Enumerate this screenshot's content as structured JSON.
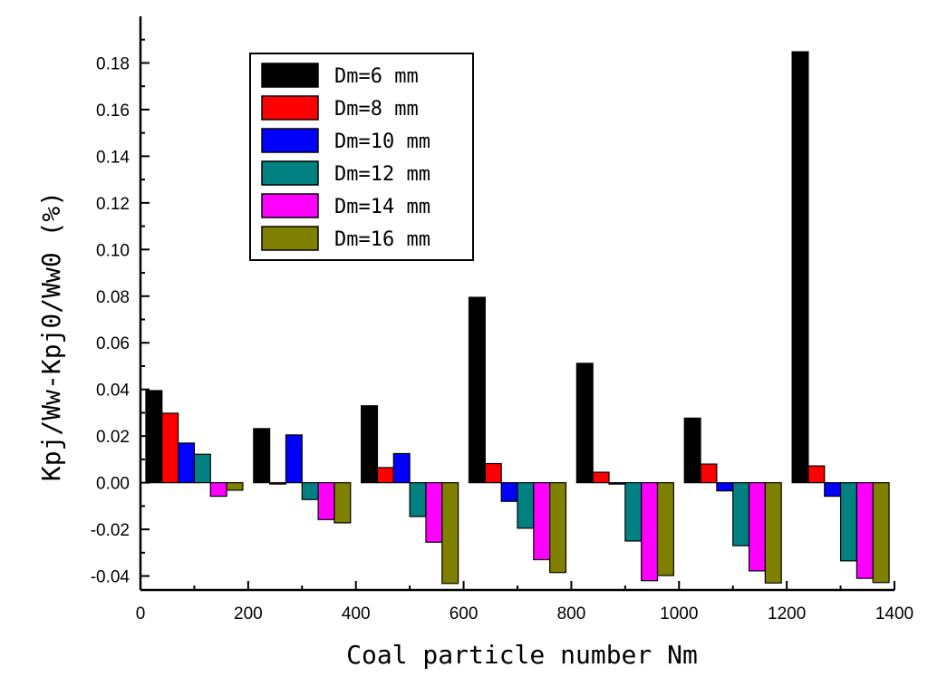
{
  "chart_data": {
    "type": "bar",
    "title": "",
    "xlabel": "Coal particle number Nm",
    "ylabel": "Kpj/Ww-Kpj0/Ww0 (%)",
    "xlim": [
      0,
      1400
    ],
    "ylim": [
      -0.046,
      0.2
    ],
    "x_ticks": [
      0,
      200,
      400,
      600,
      800,
      1000,
      1200,
      1400
    ],
    "x_tick_labels": [
      "0",
      "200",
      "400",
      "600",
      "800",
      "1000",
      "1200",
      "1400"
    ],
    "y_ticks": [
      -0.04,
      -0.02,
      0.0,
      0.02,
      0.04,
      0.06,
      0.08,
      0.1,
      0.12,
      0.14,
      0.16,
      0.18
    ],
    "y_tick_labels": [
      "-0.04",
      "-0.02",
      "0.00",
      "0.02",
      "0.04",
      "0.06",
      "0.08",
      "0.10",
      "0.12",
      "0.14",
      "0.16",
      "0.18"
    ],
    "group_centers": [
      100,
      300,
      500,
      700,
      900,
      1100,
      1300
    ],
    "bar_width": 30,
    "legend_position": "top-left",
    "series": [
      {
        "name": "Dm=6 mm",
        "color": "#000000",
        "values": [
          0.0395,
          0.0232,
          0.033,
          0.0795,
          0.0512,
          0.0277,
          0.1848
        ]
      },
      {
        "name": "Dm=8 mm",
        "color": "#ff0000",
        "values": [
          0.0298,
          0.0,
          0.0065,
          0.0082,
          0.0045,
          0.008,
          0.0072
        ]
      },
      {
        "name": "Dm=10 mm",
        "color": "#0000ff",
        "values": [
          0.017,
          0.0205,
          0.0125,
          -0.008,
          -0.0005,
          -0.0035,
          -0.0058
        ]
      },
      {
        "name": "Dm=12 mm",
        "color": "#008080",
        "values": [
          0.0122,
          -0.0072,
          -0.0145,
          -0.0195,
          -0.025,
          -0.027,
          -0.0335
        ]
      },
      {
        "name": "Dm=14 mm",
        "color": "#ff00ff",
        "values": [
          -0.0058,
          -0.0158,
          -0.0255,
          -0.033,
          -0.042,
          -0.0378,
          -0.041
        ]
      },
      {
        "name": "Dm=16 mm",
        "color": "#808000",
        "values": [
          -0.0032,
          -0.0172,
          -0.0432,
          -0.0385,
          -0.0398,
          -0.043,
          -0.0428
        ]
      }
    ]
  }
}
